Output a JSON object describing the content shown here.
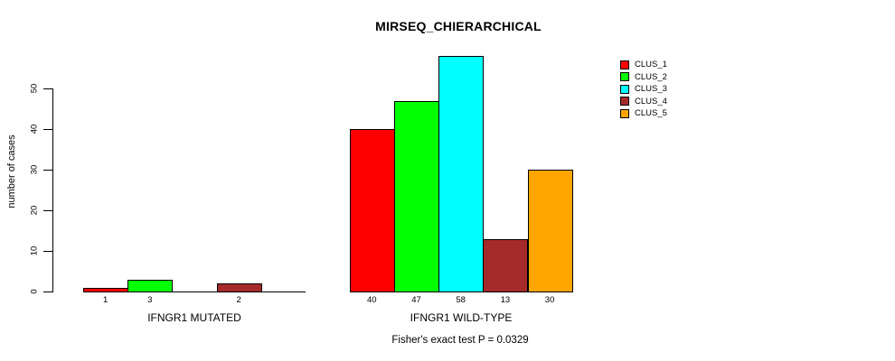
{
  "chart_data": {
    "type": "bar",
    "title": "MIRSEQ_CHIERARCHICAL",
    "ylabel": "number of cases",
    "xlabel": "",
    "subtitle": "Fisher's exact test P = 0.0329",
    "ylim": [
      0,
      58
    ],
    "yticks": [
      0,
      10,
      20,
      30,
      40,
      50
    ],
    "grid": false,
    "legend_position": "top-right",
    "series": [
      {
        "name": "CLUS_1",
        "color": "#FF0000"
      },
      {
        "name": "CLUS_2",
        "color": "#00FF00"
      },
      {
        "name": "CLUS_3",
        "color": "#00FFFF"
      },
      {
        "name": "CLUS_4",
        "color": "#A52A2A"
      },
      {
        "name": "CLUS_5",
        "color": "#FFA500"
      }
    ],
    "groups": [
      {
        "label": "IFNGR1 MUTATED",
        "values": [
          1,
          3,
          0,
          2,
          0
        ],
        "bar_labels": [
          "1",
          "3",
          "",
          "2",
          ""
        ]
      },
      {
        "label": "IFNGR1 WILD-TYPE",
        "values": [
          40,
          47,
          58,
          13,
          30
        ],
        "bar_labels": [
          "40",
          "47",
          "58",
          "13",
          "30"
        ]
      }
    ]
  },
  "colors": {
    "background": "#FFFFFF",
    "axis": "#000000",
    "text": "#000000"
  }
}
